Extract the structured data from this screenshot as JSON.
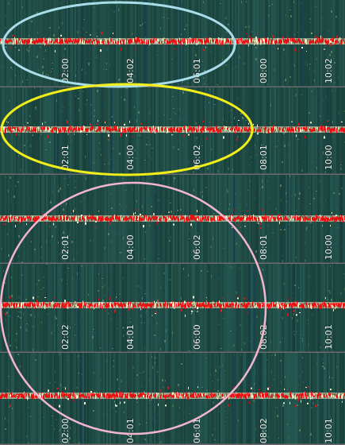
{
  "colors": {
    "background": "#1f4a3a",
    "band_core": "#e81010",
    "band_halo": "#f4f1c8",
    "panel_divider": "#6b6b6b",
    "circle_blue": "#a9dde9",
    "circle_yellow": "#f2ee19",
    "circle_pink": "#f3b6cf"
  },
  "panels": [
    {
      "name": "panel-1",
      "ticks": [
        "02:00",
        "04:02",
        "06:01",
        "08:00",
        "10:02"
      ]
    },
    {
      "name": "panel-2",
      "ticks": [
        "02:01",
        "04:00",
        "06:02",
        "08:01",
        "10:00"
      ]
    },
    {
      "name": "panel-3",
      "ticks": [
        "02:01",
        "04:00",
        "06:02",
        "08:01",
        "10:00"
      ]
    },
    {
      "name": "panel-4",
      "ticks": [
        "02:02",
        "04:01",
        "06:00",
        "08:02",
        "10:01"
      ]
    },
    {
      "name": "panel-5",
      "ticks": [
        "02:00",
        "04:01",
        "06:01",
        "08:02",
        "10:01"
      ]
    }
  ],
  "annotations": [
    {
      "name": "blue-ellipse",
      "color_key": "circle_blue"
    },
    {
      "name": "yellow-ellipse",
      "color_key": "circle_yellow"
    },
    {
      "name": "pink-ellipse",
      "color_key": "circle_pink"
    }
  ]
}
